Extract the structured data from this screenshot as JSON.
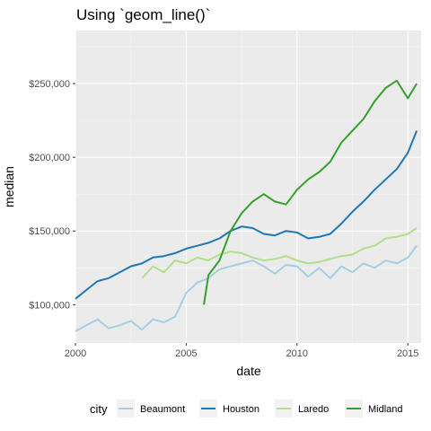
{
  "chart_data": {
    "type": "line",
    "title": "Using `geom_line()`",
    "xlabel": "date",
    "ylabel": "median",
    "xlim": [
      2000.0,
      2015.6
    ],
    "ylim": [
      74000,
      286000
    ],
    "x_ticks": [
      2000,
      2005,
      2010,
      2015
    ],
    "y_ticks": [
      100000,
      150000,
      200000,
      250000
    ],
    "y_tick_labels": [
      "$100,000",
      "$150,000",
      "$200,000",
      "$250,000"
    ],
    "grid": true,
    "legend": {
      "title": "city",
      "position": "bottom"
    },
    "series": [
      {
        "name": "Beaumont",
        "color": "#a6cee3",
        "x": [
          2000.0,
          2000.5,
          2001.0,
          2001.5,
          2002.0,
          2002.5,
          2003.0,
          2003.5,
          2004.0,
          2004.5,
          2005.0,
          2005.5,
          2006.0,
          2006.5,
          2007.0,
          2007.5,
          2008.0,
          2008.5,
          2009.0,
          2009.5,
          2010.0,
          2010.5,
          2011.0,
          2011.5,
          2012.0,
          2012.5,
          2013.0,
          2013.5,
          2014.0,
          2014.5,
          2015.0,
          2015.4
        ],
        "values": [
          82000,
          86000,
          90000,
          84000,
          86000,
          89000,
          83000,
          90000,
          88000,
          92000,
          108000,
          115000,
          118000,
          124000,
          126000,
          128000,
          130000,
          126000,
          121000,
          127000,
          126000,
          119000,
          125000,
          118000,
          126000,
          122000,
          128000,
          125000,
          130000,
          128000,
          132000,
          140000
        ]
      },
      {
        "name": "Houston",
        "color": "#1f78b4",
        "x": [
          2000.0,
          2000.5,
          2001.0,
          2001.5,
          2002.0,
          2002.5,
          2003.0,
          2003.5,
          2004.0,
          2004.5,
          2005.0,
          2005.5,
          2006.0,
          2006.5,
          2007.0,
          2007.5,
          2008.0,
          2008.5,
          2009.0,
          2009.5,
          2010.0,
          2010.5,
          2011.0,
          2011.5,
          2012.0,
          2012.5,
          2013.0,
          2013.5,
          2014.0,
          2014.5,
          2015.0,
          2015.4
        ],
        "values": [
          104000,
          110000,
          116000,
          118000,
          122000,
          126000,
          128000,
          132000,
          133000,
          135000,
          138000,
          140000,
          142000,
          145000,
          150000,
          153000,
          152000,
          148000,
          147000,
          150000,
          149000,
          145000,
          146000,
          148000,
          155000,
          163000,
          170000,
          178000,
          185000,
          192000,
          203000,
          218000
        ]
      },
      {
        "name": "Laredo",
        "color": "#b2df8a",
        "x": [
          2003.0,
          2003.5,
          2004.0,
          2004.5,
          2005.0,
          2005.5,
          2006.0,
          2006.5,
          2007.0,
          2007.5,
          2008.0,
          2008.5,
          2009.0,
          2009.5,
          2010.0,
          2010.5,
          2011.0,
          2011.5,
          2012.0,
          2012.5,
          2013.0,
          2013.5,
          2014.0,
          2014.5,
          2015.0,
          2015.4
        ],
        "values": [
          118000,
          126000,
          122000,
          130000,
          128000,
          132000,
          130000,
          134000,
          136000,
          135000,
          132000,
          130000,
          131000,
          133000,
          130000,
          128000,
          129000,
          131000,
          133000,
          134000,
          138000,
          140000,
          145000,
          146000,
          148000,
          152000
        ]
      },
      {
        "name": "Midland",
        "color": "#33a02c",
        "x": [
          2005.8,
          2006.0,
          2006.5,
          2007.0,
          2007.5,
          2008.0,
          2008.5,
          2009.0,
          2009.5,
          2010.0,
          2010.5,
          2011.0,
          2011.5,
          2012.0,
          2012.5,
          2013.0,
          2013.5,
          2014.0,
          2014.5,
          2015.0,
          2015.4
        ],
        "values": [
          100000,
          120000,
          130000,
          150000,
          162000,
          170000,
          175000,
          170000,
          168000,
          178000,
          185000,
          190000,
          197000,
          210000,
          218000,
          226000,
          238000,
          247000,
          252000,
          240000,
          250000
        ]
      }
    ]
  }
}
